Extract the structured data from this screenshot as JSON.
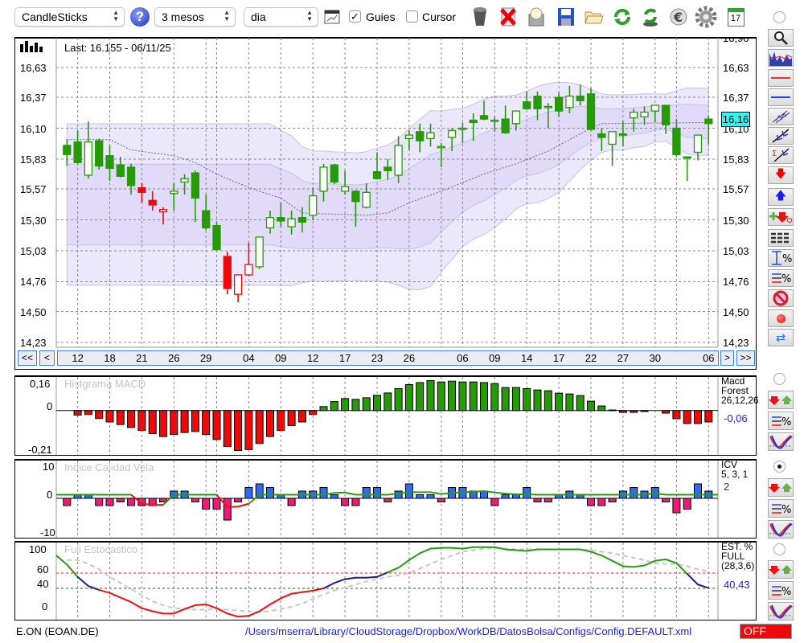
{
  "toolbar": {
    "chart_type": "CandleSticks",
    "period": "3 mesos",
    "interval": "dia",
    "guides_label": "Guies",
    "guides_checked": true,
    "cursor_label": "Cursor",
    "cursor_checked": false,
    "calendar_day": "17",
    "check_mark": "✓",
    "help_glyph": "?"
  },
  "main": {
    "last_label": "Last: 16.155 - 06/11/25",
    "price_tag": "16,16",
    "y_ticks": [
      "16,90",
      "16,63",
      "16,37",
      "16,10",
      "15,83",
      "15,57",
      "15,30",
      "15,03",
      "14,76",
      "14,50",
      "14,23"
    ],
    "nav": {
      "first": "<<",
      "prev": "<",
      "next": ">",
      "last": ">>"
    }
  },
  "panels": {
    "macd": {
      "title": "Histgrama MACD",
      "legend": [
        "Macd",
        "Forest",
        "26,12,26"
      ],
      "value": "-0,06",
      "y_labels": [
        "0,16",
        "0",
        "-0,21"
      ]
    },
    "icv": {
      "title": "Indice Calidad Vela",
      "legend": [
        "ICV",
        "5, 3, 1"
      ],
      "value": "2",
      "y_labels": [
        "10",
        "0",
        "-10"
      ]
    },
    "stoch": {
      "title": "Full Estocastico",
      "legend": [
        "EST. %",
        "FULL",
        "(28,3,6)"
      ],
      "value": "40,43",
      "y_labels": [
        "100",
        "60",
        "40",
        "0"
      ]
    }
  },
  "footer": {
    "symbol": "E.ON (EOAN.DE)",
    "path": "/Users/mserra/Library/CloudStorage/Dropbox/WorkDB/DatosBolsa/Configs/Config.DEFAULT.xml",
    "status": "OFF"
  },
  "colors": {
    "up": "#279a07",
    "down_red": "#ee0a0a",
    "band_outer": "#ebe7fc",
    "band_inner": "#e1daf9",
    "band_edge": "#c9c1e8",
    "accent_blue": "#1a1aff",
    "icv_pos": "#2f6cf5",
    "icv_neg": "#ee1a78",
    "stoch_hi": "#2a9a10",
    "stoch_mid": "#2a1a8a",
    "stoch_lo": "#ee1010"
  },
  "chart_data": [
    {
      "type": "candlestick",
      "name": "price",
      "ylim": [
        14.23,
        16.9
      ],
      "ohlc": [
        [
          15.95,
          16.0,
          15.77,
          15.87
        ],
        [
          15.98,
          16.08,
          15.79,
          15.8
        ],
        [
          15.69,
          16.16,
          15.66,
          15.98
        ],
        [
          15.99,
          16.01,
          15.74,
          15.77
        ],
        [
          15.86,
          15.95,
          15.64,
          15.75
        ],
        [
          15.78,
          15.85,
          15.67,
          15.68
        ],
        [
          15.76,
          15.79,
          15.52,
          15.6
        ],
        [
          15.58,
          15.62,
          15.45,
          15.54
        ],
        [
          15.47,
          15.55,
          15.38,
          15.43
        ],
        [
          15.37,
          15.41,
          15.26,
          15.39
        ],
        [
          15.53,
          15.62,
          15.38,
          15.55
        ],
        [
          15.63,
          15.7,
          15.52,
          15.66
        ],
        [
          15.71,
          15.73,
          15.28,
          15.49
        ],
        [
          15.38,
          15.52,
          15.21,
          15.23
        ],
        [
          15.25,
          15.28,
          15.04,
          15.04
        ],
        [
          14.98,
          15.02,
          14.65,
          14.7
        ],
        [
          14.65,
          14.82,
          14.58,
          14.82
        ],
        [
          14.82,
          15.1,
          14.81,
          14.91
        ],
        [
          14.89,
          15.15,
          14.87,
          15.15
        ],
        [
          15.23,
          15.38,
          15.18,
          15.32
        ],
        [
          15.32,
          15.45,
          15.24,
          15.29
        ],
        [
          15.24,
          15.38,
          15.17,
          15.31
        ],
        [
          15.32,
          15.41,
          15.19,
          15.28
        ],
        [
          15.34,
          15.58,
          15.3,
          15.51
        ],
        [
          15.55,
          15.79,
          15.46,
          15.76
        ],
        [
          15.78,
          15.79,
          15.61,
          15.63
        ],
        [
          15.55,
          15.73,
          15.52,
          15.59
        ],
        [
          15.55,
          15.56,
          15.24,
          15.46
        ],
        [
          15.41,
          15.62,
          15.4,
          15.54
        ],
        [
          15.72,
          15.89,
          15.66,
          15.66
        ],
        [
          15.76,
          15.83,
          15.65,
          15.73
        ],
        [
          15.69,
          16.03,
          15.62,
          15.95
        ],
        [
          16.01,
          16.08,
          15.91,
          16.04
        ],
        [
          16.07,
          16.14,
          15.89,
          15.99
        ],
        [
          16.01,
          16.14,
          15.94,
          16.06
        ],
        [
          15.93,
          15.97,
          15.76,
          15.94
        ],
        [
          16.02,
          16.1,
          15.9,
          16.08
        ],
        [
          16.09,
          16.15,
          15.97,
          16.1
        ],
        [
          16.17,
          16.23,
          15.99,
          16.15
        ],
        [
          16.21,
          16.34,
          16.17,
          16.18
        ],
        [
          16.16,
          16.2,
          16.07,
          16.17
        ],
        [
          16.18,
          16.3,
          16.05,
          16.06
        ],
        [
          16.14,
          16.25,
          16.08,
          16.25
        ],
        [
          16.33,
          16.42,
          16.26,
          16.27
        ],
        [
          16.38,
          16.42,
          16.17,
          16.27
        ],
        [
          16.28,
          16.32,
          16.1,
          16.29
        ],
        [
          16.37,
          16.41,
          16.2,
          16.25
        ],
        [
          16.28,
          16.47,
          16.23,
          16.38
        ],
        [
          16.38,
          16.48,
          16.3,
          16.34
        ],
        [
          16.4,
          16.45,
          16.08,
          16.09
        ],
        [
          16.05,
          16.1,
          15.9,
          16.02
        ],
        [
          15.96,
          16.07,
          15.77,
          16.07
        ],
        [
          16.05,
          16.16,
          15.94,
          16.04
        ],
        [
          16.19,
          16.27,
          16.07,
          16.24
        ],
        [
          16.2,
          16.29,
          16.13,
          16.24
        ],
        [
          16.25,
          16.3,
          16.15,
          16.3
        ],
        [
          16.3,
          16.3,
          16.05,
          16.13
        ],
        [
          16.1,
          16.18,
          15.85,
          15.87
        ],
        [
          15.85,
          15.85,
          15.64,
          15.84
        ],
        [
          15.89,
          16.04,
          15.82,
          16.04
        ],
        [
          16.18,
          16.21,
          15.96,
          16.14
        ]
      ],
      "red_candles": [
        7,
        8,
        9,
        15,
        16,
        17
      ],
      "long_ma_anchors": [
        [
          0,
          16.0
        ],
        [
          4,
          16.0
        ],
        [
          6,
          15.91
        ],
        [
          10,
          15.86
        ],
        [
          12,
          15.8
        ],
        [
          14,
          15.7
        ],
        [
          16,
          15.62
        ],
        [
          18,
          15.55
        ],
        [
          20,
          15.49
        ],
        [
          22,
          15.36
        ],
        [
          28,
          15.34
        ],
        [
          30,
          15.36
        ],
        [
          32,
          15.45
        ],
        [
          35,
          15.55
        ],
        [
          39,
          15.7
        ],
        [
          42,
          15.79
        ],
        [
          45,
          15.9
        ],
        [
          47,
          16.0
        ],
        [
          49,
          16.1
        ],
        [
          50,
          16.14
        ],
        [
          60,
          16.15
        ]
      ],
      "x_labels": [
        [
          1,
          "12"
        ],
        [
          4,
          "18"
        ],
        [
          7,
          "21"
        ],
        [
          10,
          "26"
        ],
        [
          13,
          "29"
        ],
        [
          17,
          "04"
        ],
        [
          20,
          "09"
        ],
        [
          23,
          "12"
        ],
        [
          26,
          "17"
        ],
        [
          29,
          "23"
        ],
        [
          32,
          "26"
        ],
        [
          37,
          "06"
        ],
        [
          40,
          "09"
        ],
        [
          43,
          "14"
        ],
        [
          46,
          "17"
        ],
        [
          49,
          "22"
        ],
        [
          52,
          "27"
        ],
        [
          55,
          "30"
        ],
        [
          60,
          "06"
        ]
      ],
      "grid_indices": [
        1,
        4,
        7,
        10,
        13,
        14,
        17,
        20,
        23,
        26,
        29,
        32,
        35,
        37,
        40,
        43,
        46,
        49,
        52,
        55,
        57,
        60
      ],
      "last": 16.155
    },
    {
      "type": "bar",
      "name": "Histgrama MACD",
      "ylim": [
        -0.21,
        0.16
      ],
      "values": [
        null,
        -0.023,
        -0.02,
        -0.04,
        -0.057,
        -0.07,
        -0.085,
        -0.1,
        -0.115,
        -0.13,
        -0.12,
        -0.11,
        -0.105,
        -0.12,
        -0.145,
        -0.18,
        -0.2,
        -0.195,
        -0.165,
        -0.13,
        -0.1,
        -0.075,
        -0.057,
        -0.02,
        0.02,
        0.045,
        0.06,
        0.056,
        0.064,
        0.076,
        0.088,
        0.11,
        0.13,
        0.14,
        0.15,
        0.143,
        0.147,
        0.143,
        0.143,
        0.14,
        0.135,
        0.115,
        0.115,
        0.11,
        0.103,
        0.099,
        0.087,
        0.083,
        0.075,
        0.047,
        0.023,
        0.003,
        -0.009,
        -0.009,
        -0.005,
        0,
        -0.013,
        -0.041,
        -0.065,
        -0.065,
        -0.057
      ]
    },
    {
      "type": "bar",
      "name": "Indice Calidad Vela",
      "ylim": [
        -10,
        10
      ],
      "values": [
        -2,
        1,
        1,
        -2,
        -2,
        -1,
        -2,
        -2,
        -2,
        -1,
        2,
        2,
        -1,
        -3,
        -3,
        -6,
        -1,
        3,
        4,
        3,
        1,
        -2,
        2,
        2,
        3,
        1,
        -2,
        -2,
        3,
        3,
        -1,
        2,
        4,
        1,
        1,
        -1,
        3,
        3,
        2,
        2,
        -2,
        1,
        1,
        3,
        -1,
        -1,
        1,
        2,
        1,
        -2,
        -2,
        -1,
        2,
        3,
        2,
        3,
        -1,
        -4,
        -3,
        4,
        2
      ],
      "signal": [
        1,
        1,
        1,
        1,
        1,
        1,
        1,
        -1.5,
        -1.8,
        -1.8,
        1,
        1,
        1,
        1,
        1,
        -2.4,
        -2.3,
        -1.5,
        1,
        1,
        1,
        1,
        1,
        1,
        1,
        1.5,
        1.6,
        1,
        1,
        1,
        1,
        1.3,
        1.7,
        1.7,
        1.7,
        1.2,
        1.5,
        1.7,
        1.8,
        2,
        1.6,
        1.3,
        1.1,
        1.1,
        1,
        1,
        1,
        1,
        1,
        1,
        1,
        1,
        1,
        1,
        1,
        1.4,
        1,
        1,
        1,
        1,
        1
      ]
    },
    {
      "type": "line",
      "name": "Full Estocastico",
      "ylim": [
        0,
        100
      ],
      "levels": [
        60,
        40
      ],
      "k": [
        71,
        55,
        43,
        38,
        34,
        28,
        22,
        14,
        10,
        7,
        7,
        13,
        18,
        19,
        14,
        7,
        3,
        4,
        10,
        19,
        27,
        33,
        35,
        37,
        40,
        47,
        52,
        54,
        54,
        55,
        61,
        67,
        77,
        86,
        92,
        93,
        93,
        92,
        94,
        94,
        94,
        91,
        90,
        89,
        91,
        91,
        91,
        91,
        91,
        88,
        83,
        76,
        69,
        68,
        70,
        76,
        78,
        73,
        59,
        45,
        40.43
      ],
      "d": [
        77,
        77,
        72,
        65,
        55,
        47,
        39,
        31,
        23,
        18,
        14,
        13,
        12,
        12,
        13,
        12,
        11,
        10,
        9,
        10,
        13,
        16,
        20,
        26,
        32,
        37,
        41,
        45,
        49,
        52,
        55,
        57,
        60,
        66,
        72,
        78,
        83,
        88,
        90,
        92,
        93,
        92,
        91,
        91,
        91,
        91,
        91,
        91,
        91,
        90,
        88,
        86,
        83,
        80,
        77,
        73,
        72,
        72,
        69,
        65,
        62
      ]
    }
  ]
}
